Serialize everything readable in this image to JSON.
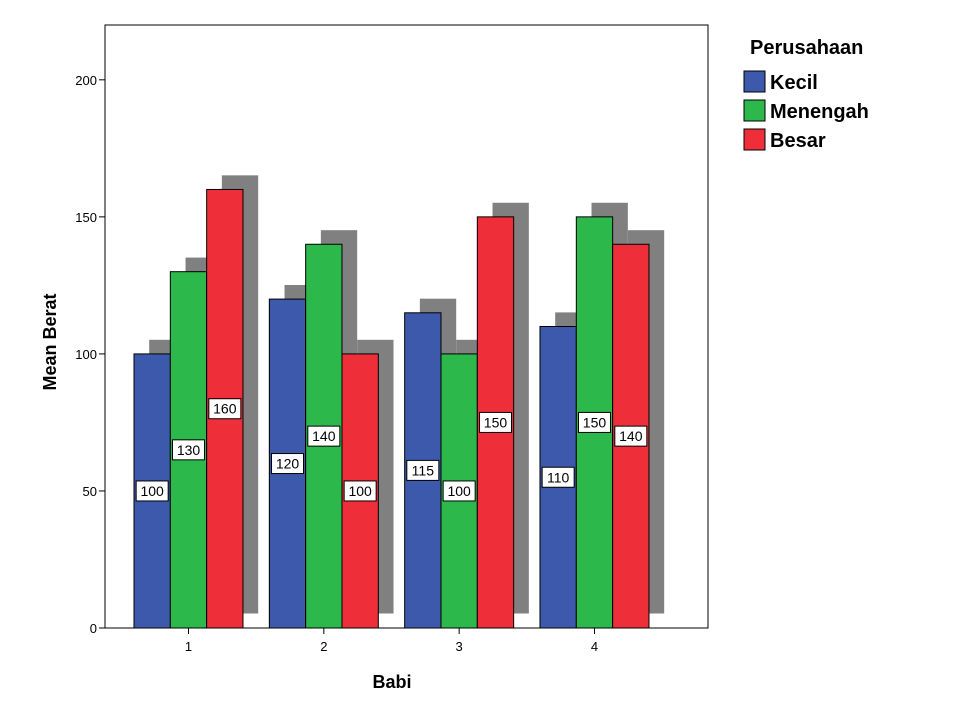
{
  "chart_data": {
    "type": "bar",
    "categories": [
      "1",
      "2",
      "3",
      "4"
    ],
    "series": [
      {
        "name": "Kecil",
        "values": [
          100,
          120,
          115,
          110
        ],
        "color": "#3d59ab"
      },
      {
        "name": "Menengah",
        "values": [
          130,
          140,
          100,
          150
        ],
        "color": "#2db84b"
      },
      {
        "name": "Besar",
        "values": [
          160,
          100,
          150,
          140
        ],
        "color": "#ee2f3a"
      }
    ],
    "shadow_color": "#808080",
    "xlabel": "Babi",
    "ylabel": "Mean Berat",
    "ylim": [
      0,
      220
    ],
    "yticks": [
      0,
      50,
      100,
      150,
      200
    ],
    "legend_title": "Perusahaan",
    "legend_position": "right",
    "data_labels": true,
    "grid": false
  }
}
